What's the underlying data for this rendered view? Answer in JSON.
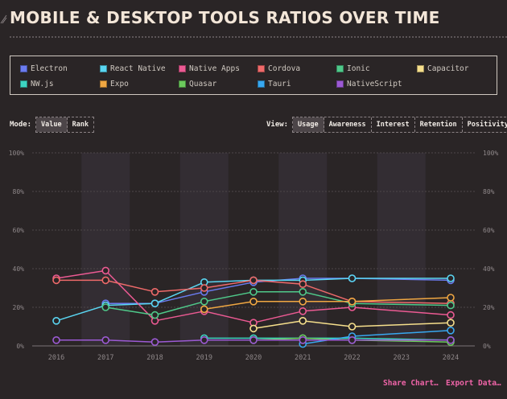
{
  "title": "MOBILE & DESKTOP TOOLS RATIOS OVER TIME",
  "legend": [
    {
      "label": "Electron",
      "color": "#6b7cf0"
    },
    {
      "label": "React Native",
      "color": "#5ad6f2"
    },
    {
      "label": "Native Apps",
      "color": "#ec5a93"
    },
    {
      "label": "Cordova",
      "color": "#ef6a6a"
    },
    {
      "label": "Ionic",
      "color": "#4fc98a"
    },
    {
      "label": "Capacitor",
      "color": "#f6df8c"
    },
    {
      "label": "NW.js",
      "color": "#3dd5c2"
    },
    {
      "label": "Expo",
      "color": "#f0a742"
    },
    {
      "label": "Quasar",
      "color": "#6bc95c"
    },
    {
      "label": "Tauri",
      "color": "#38a8f0"
    },
    {
      "label": "NativeScript",
      "color": "#9c5ad4"
    }
  ],
  "controls": {
    "mode_label": "Mode:",
    "mode_options": [
      "Value",
      "Rank"
    ],
    "view_label": "View:",
    "view_options": [
      "Usage",
      "Awareness",
      "Interest",
      "Retention",
      "Positivity"
    ]
  },
  "footer": {
    "share": "Share Chart…",
    "export": "Export Data…"
  },
  "chart_data": {
    "type": "line",
    "title": "MOBILE & DESKTOP TOOLS RATIOS OVER TIME",
    "x": [
      2016,
      2017,
      2018,
      2019,
      2020,
      2021,
      2022,
      2023,
      2024
    ],
    "x_labels": [
      "2016",
      "2017",
      "2018",
      "2019",
      "2020",
      "2021",
      "2022",
      "2023",
      "2024"
    ],
    "ylim": [
      0,
      100
    ],
    "y_ticks": [
      0,
      20,
      40,
      60,
      80,
      100
    ],
    "y_tick_labels": [
      "0%",
      "20%",
      "40%",
      "60%",
      "80%",
      "100%"
    ],
    "series": [
      {
        "name": "Electron",
        "color": "#6b7cf0",
        "values": [
          null,
          22,
          22,
          28,
          33,
          35,
          35,
          null,
          34
        ]
      },
      {
        "name": "React Native",
        "color": "#5ad6f2",
        "values": [
          13,
          21,
          22,
          33,
          34,
          34,
          35,
          null,
          35
        ]
      },
      {
        "name": "Native Apps",
        "color": "#ec5a93",
        "values": [
          35,
          39,
          13,
          18,
          12,
          18,
          20,
          null,
          16
        ]
      },
      {
        "name": "Cordova",
        "color": "#ef6a6a",
        "values": [
          34,
          34,
          28,
          30,
          34,
          32,
          23,
          null,
          22
        ]
      },
      {
        "name": "Ionic",
        "color": "#4fc98a",
        "values": [
          null,
          20,
          16,
          23,
          28,
          28,
          22,
          null,
          21
        ]
      },
      {
        "name": "Capacitor",
        "color": "#f6df8c",
        "values": [
          null,
          null,
          null,
          null,
          9,
          13,
          10,
          null,
          12
        ]
      },
      {
        "name": "NW.js",
        "color": "#3dd5c2",
        "values": [
          null,
          null,
          null,
          4,
          4,
          4,
          4,
          null,
          3
        ]
      },
      {
        "name": "Expo",
        "color": "#f0a742",
        "values": [
          null,
          null,
          null,
          19,
          23,
          23,
          23,
          null,
          25
        ]
      },
      {
        "name": "Quasar",
        "color": "#6bc95c",
        "values": [
          null,
          null,
          null,
          null,
          3,
          4,
          3,
          null,
          2
        ]
      },
      {
        "name": "Tauri",
        "color": "#38a8f0",
        "values": [
          null,
          null,
          null,
          null,
          null,
          1,
          5,
          null,
          8
        ]
      },
      {
        "name": "NativeScript",
        "color": "#9c5ad4",
        "values": [
          3,
          3,
          2,
          3,
          3,
          3,
          3,
          null,
          3
        ]
      }
    ]
  }
}
